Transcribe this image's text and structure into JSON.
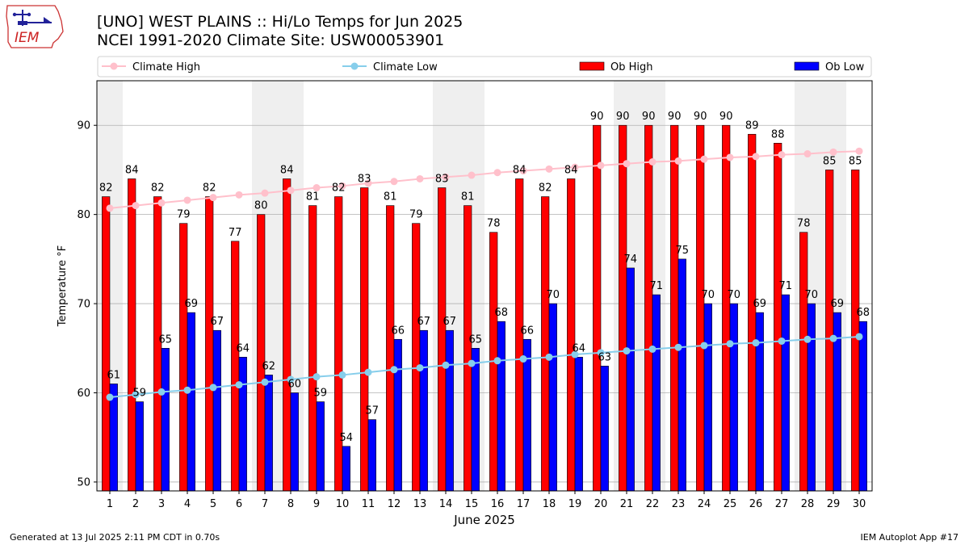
{
  "logo": {
    "text": "IEM"
  },
  "header": {
    "title": "[UNO] WEST PLAINS :: Hi/Lo Temps for Jun 2025",
    "subtitle": "NCEI 1991-2020 Climate Site: USW00053901"
  },
  "footer": {
    "left": "Generated at 13 Jul 2025 2:11 PM CDT in 0.70s",
    "right": "IEM Autoplot App #17"
  },
  "colors": {
    "ob_high": "#ff0000",
    "ob_low": "#0000ff",
    "climate_high": "#ffc0cb",
    "climate_low": "#87ceeb",
    "weekend_band": "#efefef"
  },
  "chart_data": {
    "type": "bar",
    "xlabel": "June 2025",
    "ylabel": "Temperature °F",
    "ylim": [
      49,
      95
    ],
    "yticks": [
      50,
      60,
      70,
      80,
      90
    ],
    "grid": true,
    "legend_position": "top",
    "x": [
      1,
      2,
      3,
      4,
      5,
      6,
      7,
      8,
      9,
      10,
      11,
      12,
      13,
      14,
      15,
      16,
      17,
      18,
      19,
      20,
      21,
      22,
      23,
      24,
      25,
      26,
      27,
      28,
      29,
      30
    ],
    "shaded_days": [
      1,
      7,
      8,
      14,
      15,
      21,
      22,
      28,
      29
    ],
    "series": [
      {
        "name": "Ob High",
        "kind": "bar",
        "color": "#ff0000",
        "values": [
          82,
          84,
          82,
          79,
          82,
          77,
          80,
          84,
          81,
          82,
          83,
          81,
          79,
          83,
          81,
          78,
          84,
          82,
          84,
          90,
          90,
          90,
          90,
          90,
          90,
          89,
          88,
          78,
          85,
          85
        ]
      },
      {
        "name": "Ob Low",
        "kind": "bar",
        "color": "#0000ff",
        "values": [
          61,
          59,
          65,
          69,
          67,
          64,
          62,
          60,
          59,
          54,
          57,
          66,
          67,
          67,
          65,
          68,
          66,
          70,
          64,
          63,
          74,
          71,
          75,
          70,
          70,
          69,
          71,
          70,
          69,
          68
        ]
      },
      {
        "name": "Climate High",
        "kind": "line",
        "color": "#ffc0cb",
        "values": [
          80.7,
          81.0,
          81.3,
          81.6,
          81.9,
          82.2,
          82.4,
          82.7,
          83.0,
          83.2,
          83.5,
          83.7,
          84.0,
          84.2,
          84.4,
          84.7,
          84.9,
          85.1,
          85.3,
          85.5,
          85.7,
          85.9,
          86.0,
          86.2,
          86.4,
          86.5,
          86.7,
          86.8,
          87.0,
          87.1
        ]
      },
      {
        "name": "Climate Low",
        "kind": "line",
        "color": "#87ceeb",
        "values": [
          59.5,
          59.8,
          60.1,
          60.3,
          60.6,
          60.9,
          61.2,
          61.5,
          61.8,
          62.0,
          62.3,
          62.6,
          62.8,
          63.1,
          63.3,
          63.6,
          63.8,
          64.0,
          64.3,
          64.5,
          64.7,
          64.9,
          65.1,
          65.3,
          65.5,
          65.6,
          65.8,
          66.0,
          66.1,
          66.3
        ]
      }
    ]
  }
}
